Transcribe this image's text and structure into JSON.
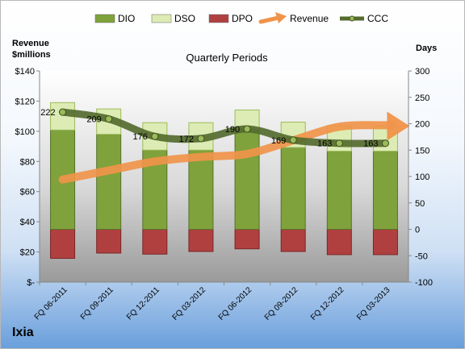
{
  "chart_data": {
    "type": "bar",
    "subtitle": "Quarterly Periods",
    "company": "Ixia",
    "left_axis": {
      "title_line1": "Revenue",
      "title_line2": "$millions",
      "ticks": [
        0,
        20,
        40,
        60,
        80,
        100,
        120,
        140
      ],
      "tick_labels": [
        "$-",
        "$20",
        "$40",
        "$60",
        "$80",
        "$100",
        "$120",
        "$140"
      ],
      "range": [
        0,
        140
      ]
    },
    "right_axis": {
      "title": "Days",
      "ticks": [
        -100,
        -50,
        0,
        50,
        100,
        150,
        200,
        250,
        300
      ],
      "tick_labels": [
        "-100",
        "-50",
        "0",
        "50",
        "100",
        "150",
        "200",
        "250",
        "300"
      ],
      "range": [
        -100,
        300
      ]
    },
    "categories": [
      "FQ 06-2011",
      "FQ 09-2011",
      "FQ 12-2011",
      "FQ 03-2012",
      "FQ 06-2012",
      "FQ 09-2012",
      "FQ 12-2012",
      "FQ 03-2013"
    ],
    "series": [
      {
        "name": "DIO",
        "axis": "days",
        "color": "#7fa23c",
        "values": [
          188,
          180,
          150,
          150,
          190,
          155,
          148,
          148
        ]
      },
      {
        "name": "DSO",
        "axis": "days",
        "color": "#dcecb4",
        "values": [
          52,
          48,
          52,
          52,
          36,
          48,
          48,
          48
        ]
      },
      {
        "name": "DPO",
        "axis": "days",
        "color": "#b04040",
        "values": [
          -55,
          -45,
          -47,
          -42,
          -37,
          -42,
          -48,
          -48
        ]
      },
      {
        "name": "Revenue",
        "axis": "revenue",
        "color": "#f0944a",
        "values": [
          68,
          74,
          80,
          83,
          85,
          94,
          103,
          104
        ]
      },
      {
        "name": "CCC",
        "axis": "days",
        "color": "#556b2f",
        "values": [
          222,
          209,
          176,
          172,
          190,
          169,
          163,
          163
        ]
      }
    ],
    "ccc_labels": [
      "222",
      "209",
      "176",
      "172",
      "190",
      "169",
      "163",
      "163"
    ],
    "legend": [
      "DIO",
      "DSO",
      "DPO",
      "Revenue",
      "CCC"
    ],
    "legend_position": "top",
    "grid": false
  }
}
